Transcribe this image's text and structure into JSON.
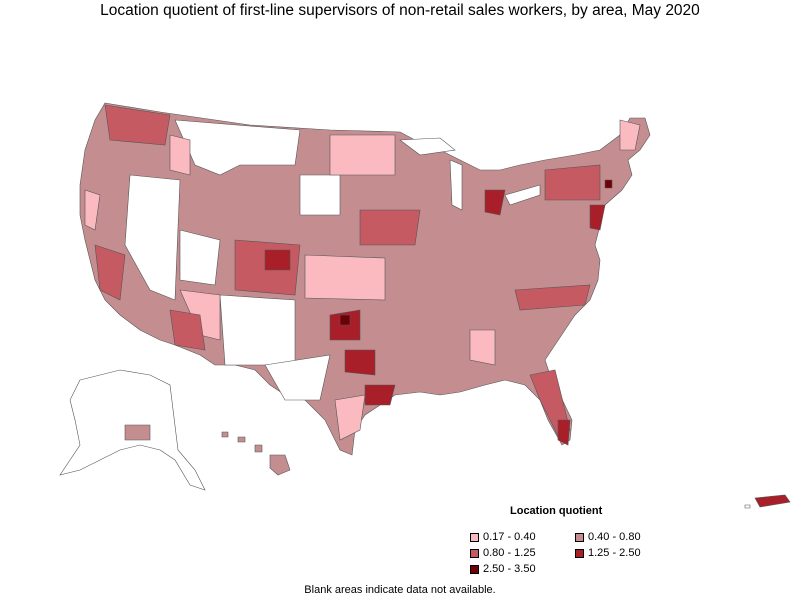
{
  "title": "Location quotient of first-line supervisors of non-retail sales workers, by area, May 2020",
  "legend": {
    "title": "Location quotient",
    "items": [
      {
        "label": "0.17 - 0.40",
        "color": "#fbb9c0"
      },
      {
        "label": "0.40 - 0.80",
        "color": "#c48e91"
      },
      {
        "label": "0.80 - 1.25",
        "color": "#c55a63"
      },
      {
        "label": "1.25 - 2.50",
        "color": "#a81f2a"
      },
      {
        "label": "2.50 - 3.50",
        "color": "#6e0008"
      }
    ]
  },
  "note": "Blank areas indicate data not available.",
  "colors": {
    "no_data": "#ffffff",
    "border": "#555555"
  }
}
